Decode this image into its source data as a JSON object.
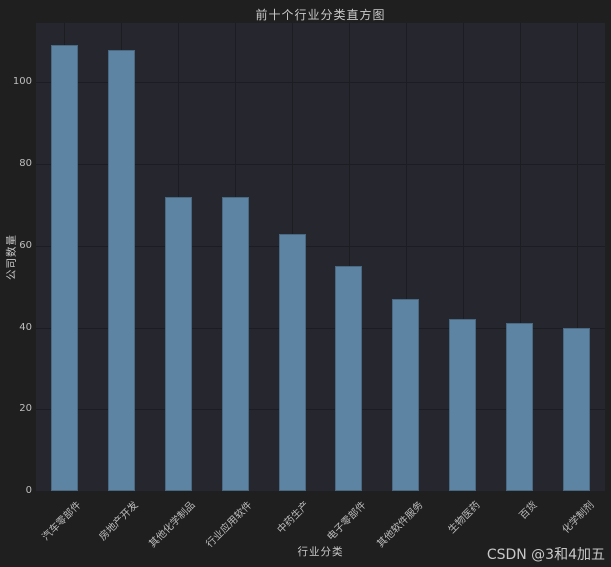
{
  "watermark": "CSDN @3和4加五",
  "chart_data": {
    "type": "bar",
    "title": "前十个行业分类直方图",
    "xlabel": "行业分类",
    "ylabel": "公司数量",
    "categories": [
      "汽车零部件",
      "房地产开发",
      "其他化学制品",
      "行业应用软件",
      "中药生产",
      "电子零部件",
      "其他软件服务",
      "生物医药",
      "百货",
      "化学制剂"
    ],
    "values": [
      109,
      108,
      72,
      72,
      63,
      55,
      47,
      42,
      41,
      40
    ],
    "yticks": [
      0,
      20,
      40,
      60,
      80,
      100
    ],
    "ylim": [
      0,
      114.5
    ],
    "grid": true,
    "legend": "none",
    "x_tick_rotation_deg": 45,
    "colors": {
      "bar": "#5d84a3",
      "plot_bg": "#26262f",
      "figure_bg": "#1f1f1f",
      "grid": "#1c1c23",
      "text": "#c9c9c9",
      "tick": "#bdbdbd"
    }
  }
}
